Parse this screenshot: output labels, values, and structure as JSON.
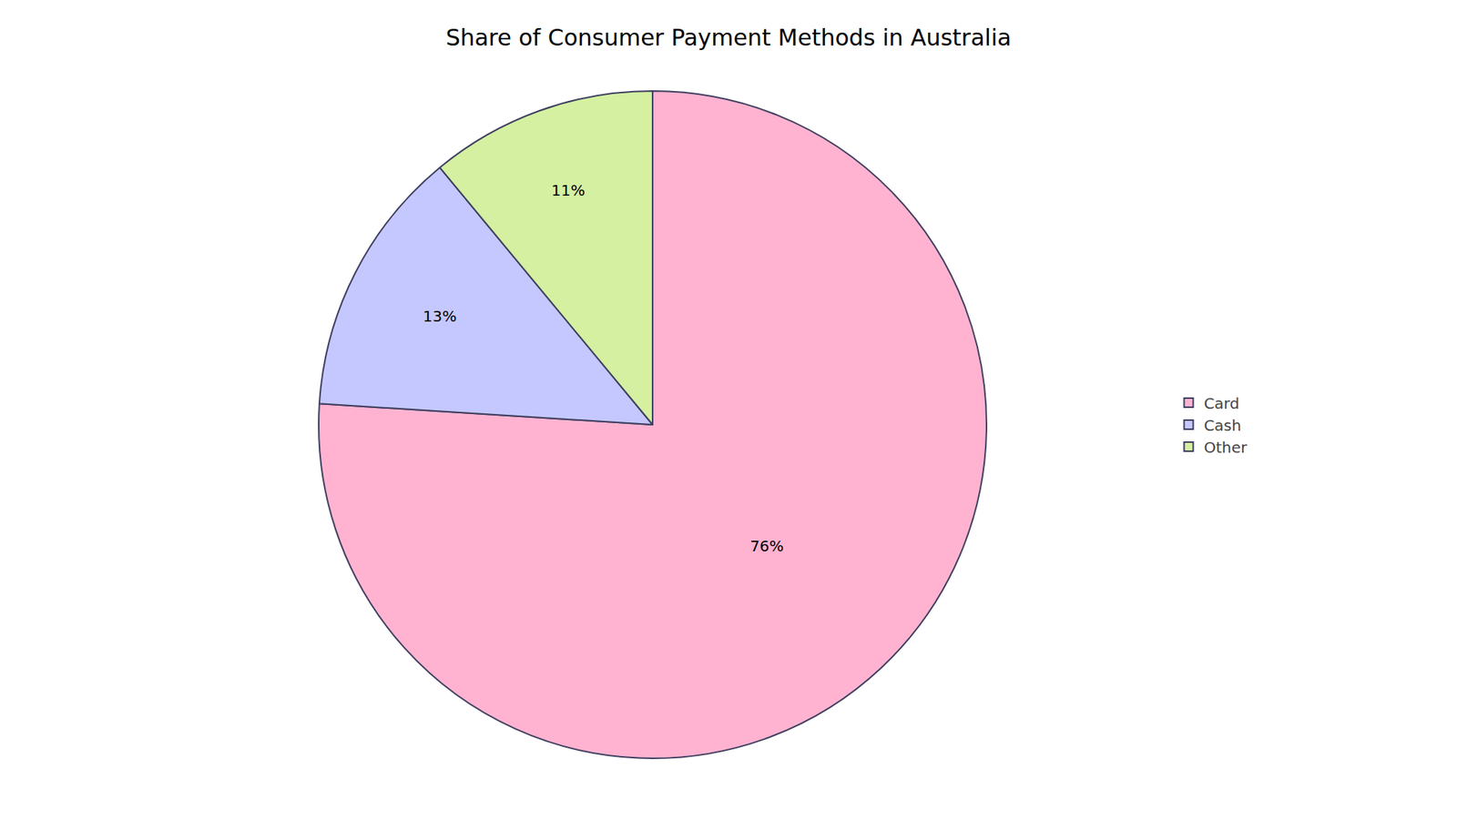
{
  "chart_data": {
    "type": "pie",
    "title": "Share of Consumer Payment Methods in Australia",
    "categories": [
      "Card",
      "Cash",
      "Other"
    ],
    "values": [
      76,
      13,
      11
    ],
    "value_labels": [
      "76%",
      "13%",
      "11%"
    ],
    "colors": [
      "#FFB3D1",
      "#C5C8FF",
      "#D4F0A0"
    ],
    "data_labels": true,
    "legend": "right"
  }
}
